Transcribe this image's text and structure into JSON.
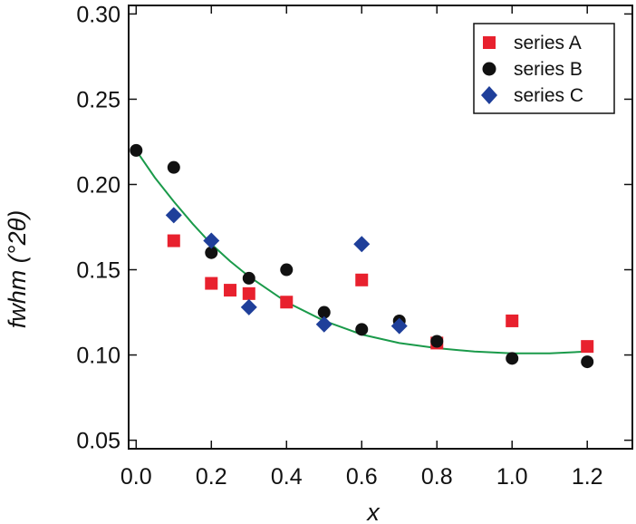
{
  "chart_data": {
    "type": "scatter",
    "xlabel": "x",
    "ylabel": "fwhm (°2θ)",
    "xlim": [
      -0.02,
      1.32
    ],
    "ylim": [
      0.045,
      0.305
    ],
    "x_ticks": [
      0.0,
      0.2,
      0.4,
      0.6,
      0.8,
      1.0,
      1.2
    ],
    "x_tick_labels": [
      "0.0",
      "0.2",
      "0.4",
      "0.6",
      "0.8",
      "1.0",
      "1.2"
    ],
    "y_ticks": [
      0.05,
      0.1,
      0.15,
      0.2,
      0.25,
      0.3
    ],
    "y_tick_labels": [
      "0.05",
      "0.10",
      "0.15",
      "0.20",
      "0.25",
      "0.30"
    ],
    "grid": false,
    "legend_position": "top-right",
    "series": [
      {
        "name": "series A",
        "marker": "square",
        "color": "#e8212e",
        "points": [
          [
            0.1,
            0.167
          ],
          [
            0.2,
            0.142
          ],
          [
            0.25,
            0.138
          ],
          [
            0.3,
            0.136
          ],
          [
            0.4,
            0.131
          ],
          [
            0.6,
            0.144
          ],
          [
            0.8,
            0.107
          ],
          [
            1.0,
            0.12
          ],
          [
            1.2,
            0.105
          ]
        ]
      },
      {
        "name": "series B",
        "marker": "circle",
        "color": "#111111",
        "points": [
          [
            0.0,
            0.22
          ],
          [
            0.1,
            0.21
          ],
          [
            0.2,
            0.16
          ],
          [
            0.3,
            0.145
          ],
          [
            0.4,
            0.15
          ],
          [
            0.5,
            0.125
          ],
          [
            0.6,
            0.115
          ],
          [
            0.7,
            0.12
          ],
          [
            0.8,
            0.108
          ],
          [
            1.0,
            0.098
          ],
          [
            1.2,
            0.096
          ]
        ]
      },
      {
        "name": "series C",
        "marker": "diamond",
        "color": "#1f3f9a",
        "points": [
          [
            0.1,
            0.182
          ],
          [
            0.2,
            0.167
          ],
          [
            0.3,
            0.128
          ],
          [
            0.5,
            0.118
          ],
          [
            0.6,
            0.165
          ],
          [
            0.7,
            0.117
          ]
        ]
      }
    ],
    "fit_curve": {
      "color": "#1a9a4a",
      "points": [
        [
          0.0,
          0.22
        ],
        [
          0.05,
          0.204
        ],
        [
          0.1,
          0.19
        ],
        [
          0.15,
          0.177
        ],
        [
          0.2,
          0.165
        ],
        [
          0.25,
          0.155
        ],
        [
          0.3,
          0.146
        ],
        [
          0.4,
          0.131
        ],
        [
          0.5,
          0.12
        ],
        [
          0.6,
          0.112
        ],
        [
          0.7,
          0.107
        ],
        [
          0.8,
          0.104
        ],
        [
          0.9,
          0.102
        ],
        [
          1.0,
          0.101
        ],
        [
          1.1,
          0.101
        ],
        [
          1.2,
          0.102
        ]
      ]
    }
  }
}
